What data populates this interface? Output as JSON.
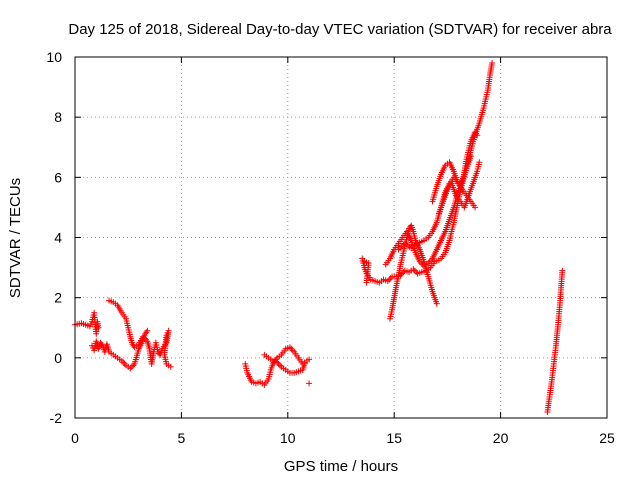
{
  "chart_data": {
    "type": "scatter",
    "title": "Day 125 of 2018, Sidereal Day-to-day VTEC variation (SDTVAR) for receiver abra",
    "xlabel": "GPS time / hours",
    "ylabel": "SDTVAR / TECUs",
    "xlim": [
      0,
      25
    ],
    "ylim": [
      -2,
      10
    ],
    "xticks": [
      "0",
      "5",
      "10",
      "15",
      "20",
      "25"
    ],
    "yticks": [
      "-2",
      "0",
      "2",
      "4",
      "6",
      "8",
      "10"
    ],
    "grid": true,
    "marker": "plus",
    "color": "#ff0000",
    "segments": [
      [
        [
          0.0,
          1.1
        ],
        [
          0.3,
          1.15
        ],
        [
          0.5,
          1.1
        ],
        [
          0.7,
          1.05
        ],
        [
          0.8,
          1.2
        ],
        [
          0.9,
          1.5
        ],
        [
          0.95,
          1.1
        ],
        [
          1.0,
          0.8
        ],
        [
          1.05,
          1.2
        ],
        [
          1.1,
          1.0
        ]
      ],
      [
        [
          0.8,
          0.4
        ],
        [
          0.9,
          0.25
        ],
        [
          1.0,
          0.55
        ],
        [
          1.1,
          0.3
        ],
        [
          1.2,
          0.5
        ],
        [
          1.3,
          0.4
        ],
        [
          1.4,
          0.2
        ],
        [
          1.5,
          0.45
        ],
        [
          1.6,
          0.2
        ],
        [
          1.8,
          0.1
        ],
        [
          2.0,
          0.0
        ],
        [
          2.2,
          -0.1
        ],
        [
          2.4,
          -0.25
        ],
        [
          2.6,
          -0.35
        ],
        [
          2.8,
          -0.2
        ],
        [
          3.0,
          0.3
        ],
        [
          3.2,
          0.6
        ],
        [
          3.3,
          0.8
        ],
        [
          3.4,
          0.9
        ]
      ],
      [
        [
          1.6,
          1.9
        ],
        [
          1.8,
          1.85
        ],
        [
          2.0,
          1.75
        ],
        [
          2.2,
          1.5
        ],
        [
          2.4,
          1.3
        ],
        [
          2.5,
          1.0
        ],
        [
          2.6,
          0.7
        ],
        [
          2.7,
          0.45
        ],
        [
          2.8,
          0.35
        ],
        [
          3.0,
          0.45
        ],
        [
          3.2,
          0.7
        ],
        [
          3.4,
          0.55
        ],
        [
          3.5,
          0.3
        ],
        [
          3.6,
          -0.2
        ],
        [
          3.7,
          0.2
        ],
        [
          3.8,
          0.5
        ],
        [
          3.9,
          0.2
        ],
        [
          4.0,
          0.1
        ],
        [
          4.1,
          0.3
        ],
        [
          4.3,
          0.5
        ],
        [
          4.4,
          0.9
        ],
        [
          4.3,
          0.75
        ],
        [
          4.2,
          0.1
        ],
        [
          4.3,
          -0.2
        ],
        [
          4.5,
          -0.3
        ]
      ],
      [
        [
          8.0,
          -0.2
        ],
        [
          8.1,
          -0.5
        ],
        [
          8.3,
          -0.8
        ],
        [
          8.5,
          -0.85
        ],
        [
          8.7,
          -0.8
        ],
        [
          8.9,
          -0.9
        ],
        [
          9.1,
          -0.7
        ],
        [
          9.2,
          -0.4
        ],
        [
          9.3,
          -0.2
        ],
        [
          9.4,
          -0.1
        ],
        [
          9.5,
          0.0
        ],
        [
          9.7,
          0.1
        ],
        [
          9.9,
          0.3
        ],
        [
          10.1,
          0.35
        ],
        [
          10.3,
          0.2
        ],
        [
          10.5,
          0.0
        ],
        [
          10.7,
          -0.2
        ],
        [
          10.9,
          -0.1
        ],
        [
          11.0,
          -0.05
        ]
      ],
      [
        [
          8.9,
          0.1
        ],
        [
          9.1,
          0.0
        ],
        [
          9.3,
          -0.1
        ],
        [
          9.5,
          -0.15
        ],
        [
          9.7,
          -0.3
        ],
        [
          9.9,
          -0.4
        ],
        [
          10.1,
          -0.5
        ],
        [
          10.3,
          -0.5
        ],
        [
          10.5,
          -0.45
        ],
        [
          10.7,
          -0.4
        ],
        [
          10.8,
          -0.2
        ]
      ],
      [
        [
          11.0,
          -0.85
        ]
      ],
      [
        [
          13.5,
          3.3
        ],
        [
          13.6,
          3.0
        ],
        [
          13.7,
          2.8
        ],
        [
          13.9,
          2.6
        ],
        [
          14.1,
          2.55
        ],
        [
          14.3,
          2.5
        ],
        [
          14.5,
          2.6
        ],
        [
          14.7,
          2.55
        ],
        [
          14.9,
          2.7
        ],
        [
          15.1,
          2.7
        ],
        [
          15.3,
          2.75
        ],
        [
          15.5,
          2.9
        ],
        [
          15.7,
          2.85
        ],
        [
          15.9,
          2.95
        ],
        [
          16.1,
          2.8
        ],
        [
          16.3,
          2.85
        ],
        [
          16.5,
          2.9
        ],
        [
          16.7,
          3.0
        ],
        [
          16.9,
          3.2
        ],
        [
          17.1,
          3.25
        ]
      ],
      [
        [
          13.6,
          3.2
        ],
        [
          13.8,
          3.15
        ],
        [
          13.7,
          2.5
        ]
      ],
      [
        [
          14.6,
          3.1
        ],
        [
          14.8,
          3.3
        ],
        [
          15.0,
          3.6
        ],
        [
          15.2,
          3.8
        ],
        [
          15.4,
          4.0
        ],
        [
          15.6,
          4.2
        ],
        [
          15.8,
          3.9
        ],
        [
          16.0,
          3.5
        ],
        [
          16.2,
          3.2
        ],
        [
          16.4,
          3.05
        ],
        [
          16.6,
          3.15
        ],
        [
          16.8,
          3.3
        ],
        [
          17.0,
          3.6
        ],
        [
          17.2,
          3.9
        ],
        [
          17.4,
          4.2
        ],
        [
          17.6,
          4.6
        ],
        [
          17.8,
          5.0
        ],
        [
          18.0,
          5.5
        ],
        [
          18.2,
          5.9
        ],
        [
          18.4,
          6.3
        ],
        [
          18.6,
          6.7
        ]
      ],
      [
        [
          14.8,
          1.3
        ],
        [
          14.9,
          1.6
        ],
        [
          15.0,
          2.0
        ],
        [
          15.1,
          2.4
        ],
        [
          15.2,
          2.7
        ],
        [
          15.3,
          3.1
        ],
        [
          15.4,
          3.4
        ],
        [
          15.5,
          3.7
        ],
        [
          15.6,
          4.0
        ],
        [
          15.7,
          4.3
        ],
        [
          15.8,
          4.4
        ],
        [
          15.9,
          4.2
        ],
        [
          16.0,
          3.9
        ],
        [
          16.2,
          3.6
        ],
        [
          16.4,
          3.2
        ],
        [
          16.6,
          2.7
        ],
        [
          16.8,
          2.2
        ],
        [
          17.0,
          1.8
        ]
      ],
      [
        [
          15.2,
          3.6
        ],
        [
          15.5,
          3.8
        ],
        [
          15.8,
          3.65
        ],
        [
          16.1,
          3.8
        ],
        [
          16.4,
          3.9
        ],
        [
          16.6,
          4.0
        ],
        [
          16.8,
          4.2
        ],
        [
          17.0,
          4.5
        ],
        [
          17.2,
          5.0
        ],
        [
          17.4,
          5.5
        ],
        [
          17.6,
          5.8
        ],
        [
          17.8,
          6.0
        ],
        [
          18.0,
          5.8
        ],
        [
          18.2,
          5.6
        ],
        [
          18.4,
          5.4
        ],
        [
          18.6,
          5.2
        ],
        [
          18.8,
          5.0
        ]
      ],
      [
        [
          16.8,
          5.2
        ],
        [
          17.0,
          5.7
        ],
        [
          17.2,
          6.1
        ],
        [
          17.4,
          6.4
        ],
        [
          17.6,
          6.5
        ],
        [
          17.8,
          6.2
        ],
        [
          18.0,
          5.8
        ],
        [
          18.2,
          5.8
        ],
        [
          18.4,
          6.3
        ],
        [
          18.6,
          6.9
        ],
        [
          18.8,
          7.4
        ],
        [
          19.0,
          7.8
        ],
        [
          19.2,
          8.3
        ],
        [
          19.4,
          8.9
        ],
        [
          19.5,
          9.4
        ],
        [
          19.6,
          9.8
        ]
      ],
      [
        [
          17.1,
          4.8
        ],
        [
          17.3,
          5.2
        ],
        [
          17.5,
          5.6
        ],
        [
          17.7,
          5.8
        ],
        [
          17.9,
          5.4
        ],
        [
          18.1,
          5.2
        ],
        [
          18.3,
          5.0
        ],
        [
          18.5,
          5.4
        ],
        [
          18.7,
          5.8
        ],
        [
          18.9,
          6.2
        ],
        [
          19.0,
          6.5
        ]
      ],
      [
        [
          17.2,
          3.3
        ],
        [
          17.4,
          3.5
        ],
        [
          17.6,
          3.9
        ],
        [
          17.8,
          4.5
        ],
        [
          18.0,
          5.2
        ],
        [
          18.2,
          5.8
        ],
        [
          18.4,
          6.6
        ],
        [
          18.6,
          7.2
        ],
        [
          18.8,
          7.5
        ],
        [
          18.9,
          7.4
        ]
      ],
      [
        [
          22.2,
          -1.8
        ],
        [
          22.3,
          -1.3
        ],
        [
          22.4,
          -0.8
        ],
        [
          22.5,
          -0.2
        ],
        [
          22.6,
          0.4
        ],
        [
          22.7,
          1.1
        ],
        [
          22.8,
          1.9
        ],
        [
          22.9,
          2.9
        ]
      ]
    ]
  }
}
